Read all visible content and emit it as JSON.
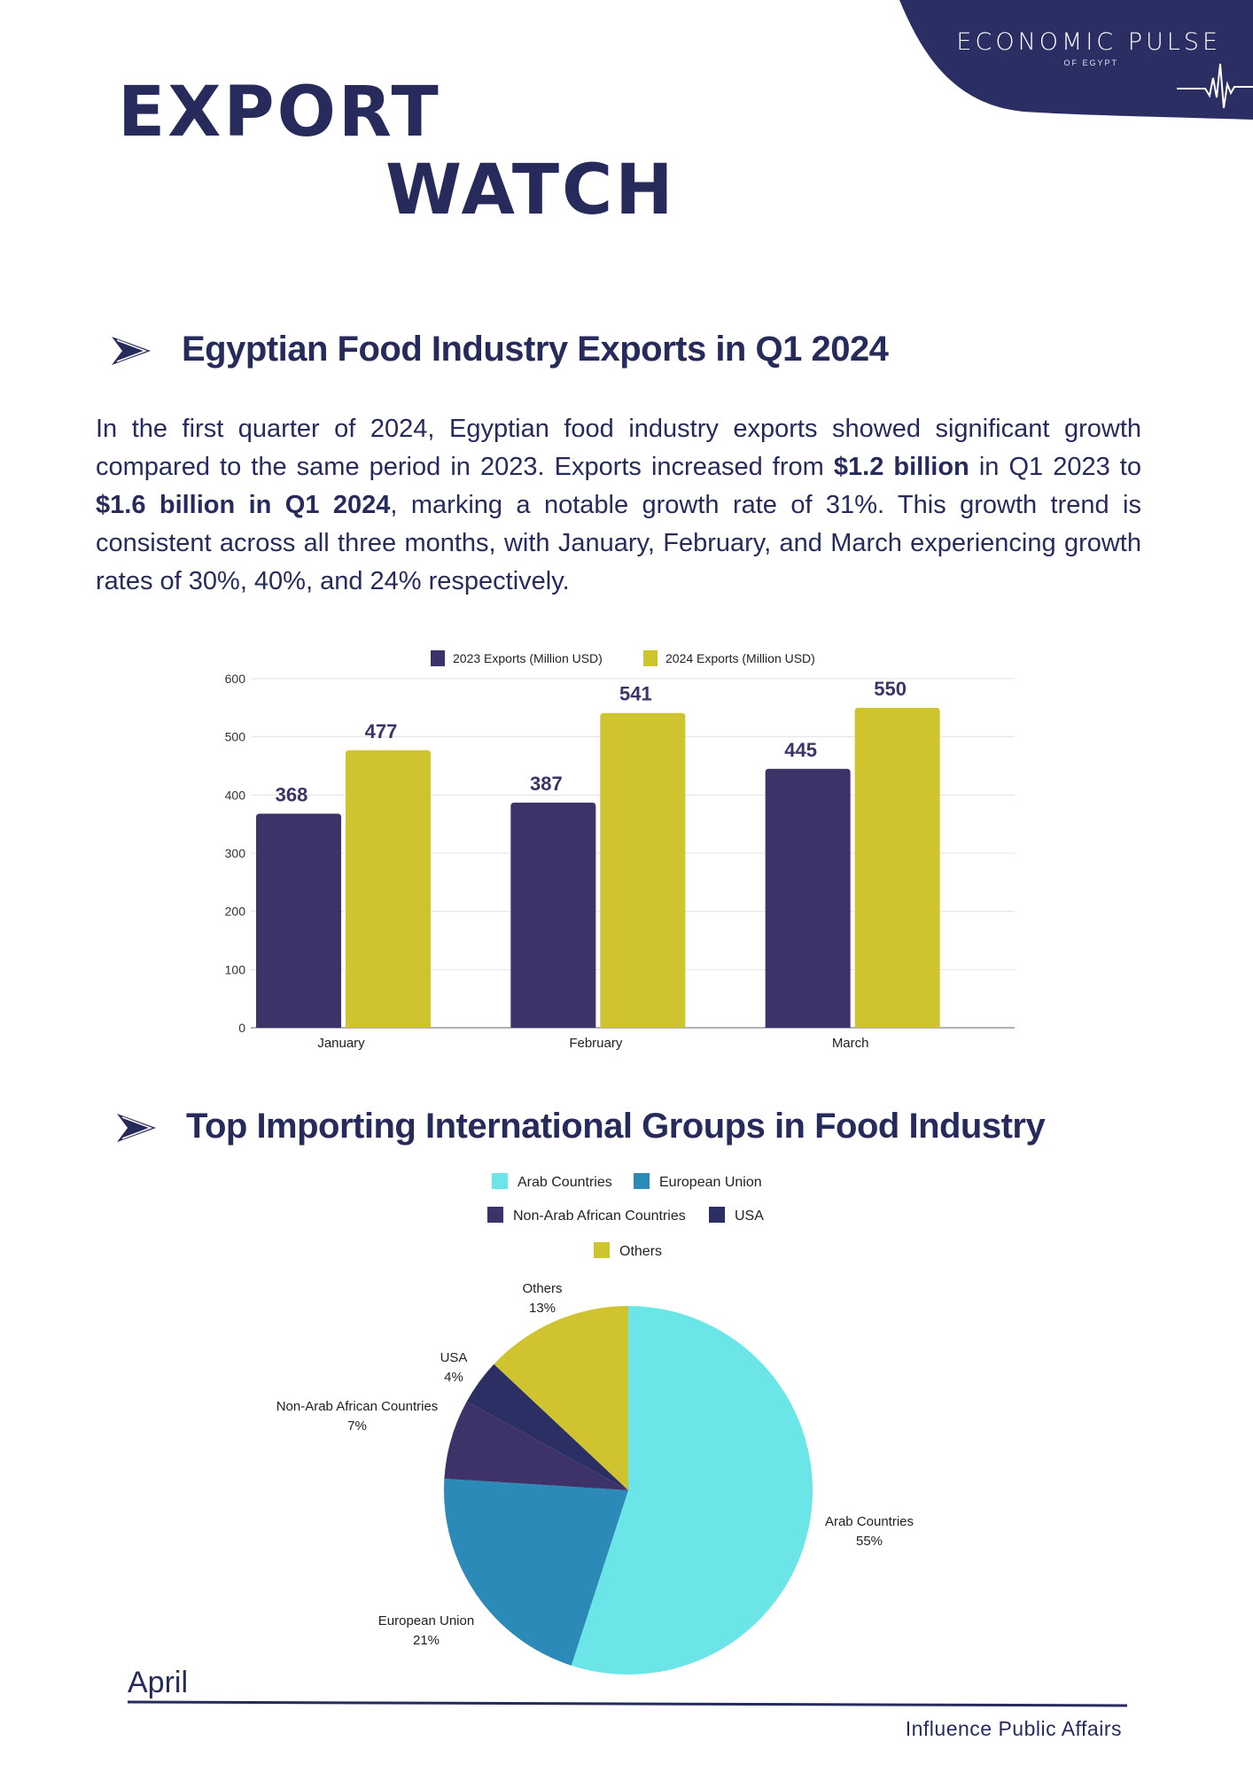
{
  "brand": {
    "title": "ECONOMIC PULSE",
    "subtitle": "OF EGYPT",
    "color": "#2a2e63"
  },
  "header": {
    "line1": "EXPORT",
    "line2": "WATCH"
  },
  "section1": {
    "heading": "Egyptian Food Industry Exports in Q1 2024",
    "paragraph": {
      "p1": "In the first quarter of 2024, Egyptian food industry exports showed significant growth compared to the same period in 2023. Exports increased from ",
      "b1": "$1.2 billion",
      "p2": " in Q1 2023 to ",
      "b2": "$1.6 billion in Q1 2024",
      "p3": ", marking a notable growth rate of 31%. This growth trend is consistent across all three months, with January, February, and March experiencing growth rates of 30%, 40%, and 24% respectively."
    }
  },
  "section2": {
    "heading": "Top Importing International Groups in Food Industry"
  },
  "footer": {
    "month": "April",
    "org": "Influence Public Affairs"
  },
  "chart_data": [
    {
      "type": "bar",
      "title": "",
      "xlabel": "",
      "ylabel": "",
      "categories": [
        "January",
        "February",
        "March"
      ],
      "series": [
        {
          "name": "2023 Exports (Million USD)",
          "values": [
            368,
            387,
            445
          ],
          "color": "#3d3368"
        },
        {
          "name": "2024 Exports (Million USD)",
          "values": [
            477,
            541,
            550
          ],
          "color": "#cfc430"
        }
      ],
      "ylim": [
        0,
        600
      ],
      "yticks": [
        0,
        100,
        200,
        300,
        400,
        500,
        600
      ],
      "grid": true,
      "legend": "top-center"
    },
    {
      "type": "pie",
      "title": "",
      "slices": [
        {
          "label": "Arab Countries",
          "value": 55,
          "display": "55%",
          "color": "#6ce5e8"
        },
        {
          "label": "European Union",
          "value": 21,
          "display": "21%",
          "color": "#2b8ab8"
        },
        {
          "label": "Non-Arab African Countries",
          "value": 7,
          "display": "7%",
          "color": "#3d3368"
        },
        {
          "label": "USA",
          "value": 4,
          "display": "4%",
          "color": "#2b2f63"
        },
        {
          "label": "Others",
          "value": 13,
          "display": "13%",
          "color": "#cfc430"
        }
      ],
      "legend": "top-center"
    }
  ]
}
